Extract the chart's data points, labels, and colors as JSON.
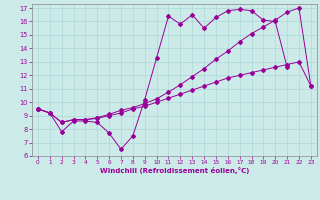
{
  "xlabel": "Windchill (Refroidissement éolien,°C)",
  "background_color": "#cceae8",
  "line_color": "#990099",
  "grid_color": "#aad8d8",
  "xlim": [
    -0.5,
    23.5
  ],
  "ylim": [
    6,
    17.3
  ],
  "yticks": [
    6,
    7,
    8,
    9,
    10,
    11,
    12,
    13,
    14,
    15,
    16,
    17
  ],
  "xticks": [
    0,
    1,
    2,
    3,
    4,
    5,
    6,
    7,
    8,
    9,
    10,
    11,
    12,
    13,
    14,
    15,
    16,
    17,
    18,
    19,
    20,
    21,
    22,
    23
  ],
  "line1_x": [
    0,
    1,
    2,
    3,
    4,
    5,
    6,
    7,
    8,
    9,
    10,
    11,
    12,
    13,
    14,
    15,
    16,
    17,
    18,
    19,
    20,
    21
  ],
  "line1_y": [
    9.5,
    9.2,
    7.8,
    8.6,
    8.6,
    8.5,
    7.7,
    6.5,
    7.5,
    10.2,
    13.3,
    16.4,
    15.8,
    16.5,
    15.5,
    16.3,
    16.8,
    16.9,
    16.8,
    16.1,
    16.0,
    12.6
  ],
  "line2_x": [
    0,
    1,
    2,
    3,
    4,
    5,
    6,
    7,
    8,
    9,
    10,
    11,
    12,
    13,
    14,
    15,
    16,
    17,
    18,
    19,
    20,
    21,
    22,
    23
  ],
  "line2_y": [
    9.5,
    9.2,
    8.5,
    8.7,
    8.7,
    8.8,
    9.0,
    9.2,
    9.5,
    9.7,
    10.0,
    10.3,
    10.6,
    10.9,
    11.2,
    11.5,
    11.8,
    12.0,
    12.2,
    12.4,
    12.6,
    12.8,
    13.0,
    11.2
  ],
  "line3_x": [
    0,
    1,
    2,
    3,
    4,
    5,
    6,
    7,
    8,
    9,
    10,
    11,
    12,
    13,
    14,
    15,
    16,
    17,
    18,
    19,
    20,
    21,
    22,
    23
  ],
  "line3_y": [
    9.5,
    9.2,
    8.5,
    8.7,
    8.7,
    8.85,
    9.1,
    9.4,
    9.6,
    9.9,
    10.25,
    10.75,
    11.3,
    11.9,
    12.5,
    13.2,
    13.8,
    14.5,
    15.1,
    15.6,
    16.1,
    16.7,
    17.0,
    11.2
  ]
}
